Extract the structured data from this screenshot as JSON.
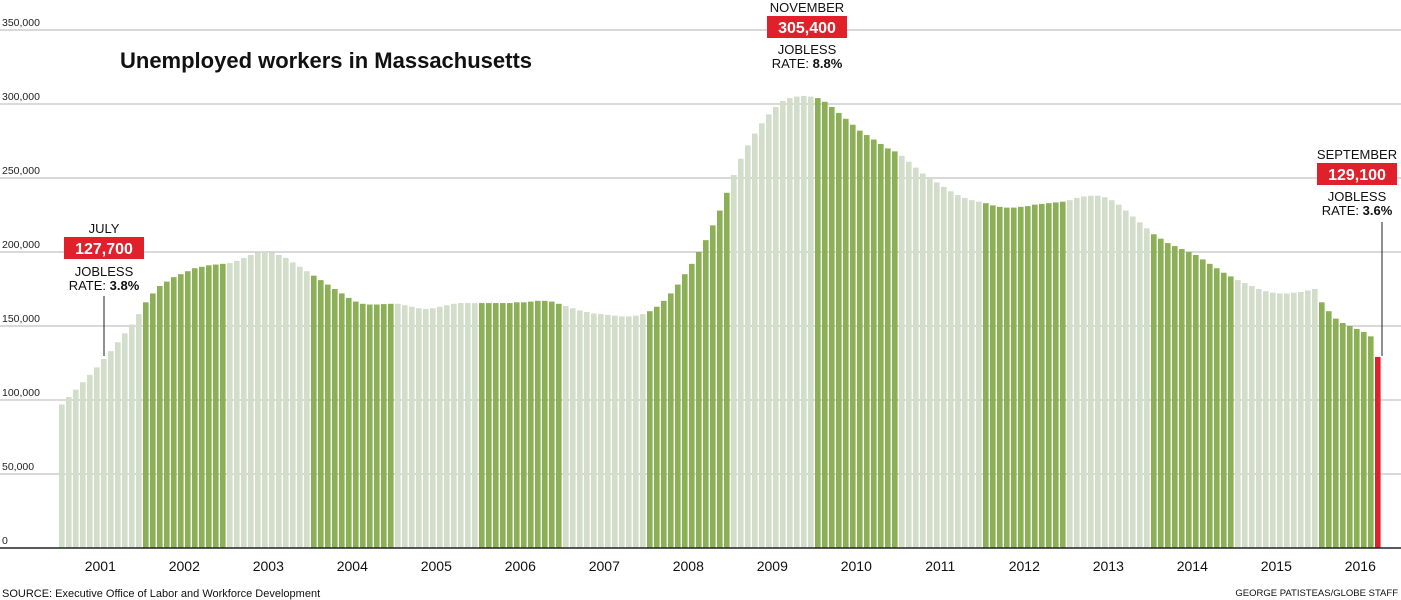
{
  "chart_data": {
    "type": "bar",
    "title": "Unemployed workers in Massachusetts",
    "ylim": [
      0,
      350000
    ],
    "yticks": [
      "350,000",
      "300,000",
      "250,000",
      "200,000",
      "150,000",
      "100,000",
      "50,000",
      "0"
    ],
    "ytick_values": [
      350000,
      300000,
      250000,
      200000,
      150000,
      100000,
      50000,
      0
    ],
    "years": [
      "2001",
      "2002",
      "2003",
      "2004",
      "2005",
      "2006",
      "2007",
      "2008",
      "2009",
      "2010",
      "2011",
      "2012",
      "2013",
      "2014",
      "2015",
      "2016"
    ],
    "grid": true,
    "colors": {
      "light": "#d2ddca",
      "dark": "#8bb055",
      "highlight": "#e0202a",
      "grid": "#9a9a9a",
      "axis": "#222222"
    },
    "monthly_values": [
      [
        97000,
        102000,
        107000,
        112000,
        117000,
        122000,
        127700,
        133000,
        139000,
        145000,
        151000,
        158000
      ],
      [
        166000,
        172000,
        177000,
        180000,
        183000,
        185000,
        187000,
        189000,
        190000,
        191000,
        191500,
        192000
      ],
      [
        192500,
        194000,
        196000,
        198000,
        199500,
        200000,
        199500,
        198000,
        196000,
        193000,
        190000,
        187000
      ],
      [
        184000,
        181000,
        178000,
        175000,
        172000,
        169000,
        166500,
        165000,
        164500,
        164500,
        164800,
        165000
      ],
      [
        165000,
        164000,
        163000,
        162000,
        161500,
        162000,
        163000,
        164000,
        165000,
        165500,
        165500,
        165500
      ],
      [
        165500,
        165500,
        165500,
        165500,
        165500,
        166000,
        166000,
        166500,
        167000,
        167000,
        166500,
        165000
      ],
      [
        163500,
        162000,
        160500,
        159500,
        158500,
        158000,
        157500,
        157000,
        156500,
        156500,
        157000,
        158000
      ],
      [
        160000,
        163000,
        167000,
        172000,
        178000,
        185000,
        192000,
        200000,
        208000,
        218000,
        228000,
        240000
      ],
      [
        252000,
        263000,
        272000,
        280000,
        287000,
        293000,
        298000,
        302000,
        304000,
        305000,
        305400,
        305000
      ],
      [
        304000,
        301500,
        298000,
        294000,
        290000,
        286000,
        282000,
        279000,
        276000,
        273000,
        270000,
        268000
      ],
      [
        265000,
        261000,
        257000,
        253000,
        250000,
        247000,
        244000,
        241000,
        238500,
        236500,
        235000,
        234000
      ],
      [
        233000,
        231500,
        230500,
        230000,
        230000,
        230500,
        231000,
        232000,
        232500,
        233000,
        233500,
        234000
      ],
      [
        235000,
        236500,
        237500,
        238000,
        238000,
        237000,
        235000,
        232000,
        228000,
        224000,
        220000,
        216000
      ],
      [
        212000,
        209000,
        206000,
        204000,
        202000,
        200000,
        198000,
        195000,
        192000,
        189000,
        186000,
        183500
      ],
      [
        181000,
        179000,
        177000,
        175000,
        173500,
        172500,
        172000,
        172000,
        172500,
        173000,
        174000,
        175000
      ],
      [
        166000,
        160000,
        155000,
        152000,
        150000,
        148000,
        146000,
        143000,
        129100
      ]
    ],
    "annotations": [
      {
        "month": "JULY",
        "value": "127,700",
        "rate_label": "JOBLESS",
        "rate_prefix": "RATE:",
        "rate": "3.8%"
      },
      {
        "month": "NOVEMBER",
        "value": "305,400",
        "rate_label": "JOBLESS",
        "rate_prefix": "RATE:",
        "rate": "8.8%"
      },
      {
        "month": "SEPTEMBER",
        "value": "129,100",
        "rate_label": "JOBLESS",
        "rate_prefix": "RATE:",
        "rate": "3.6%"
      }
    ],
    "source": "SOURCE: Executive Office of Labor and Workforce Development",
    "credit": "GEORGE PATISTEAS/GLOBE STAFF"
  }
}
